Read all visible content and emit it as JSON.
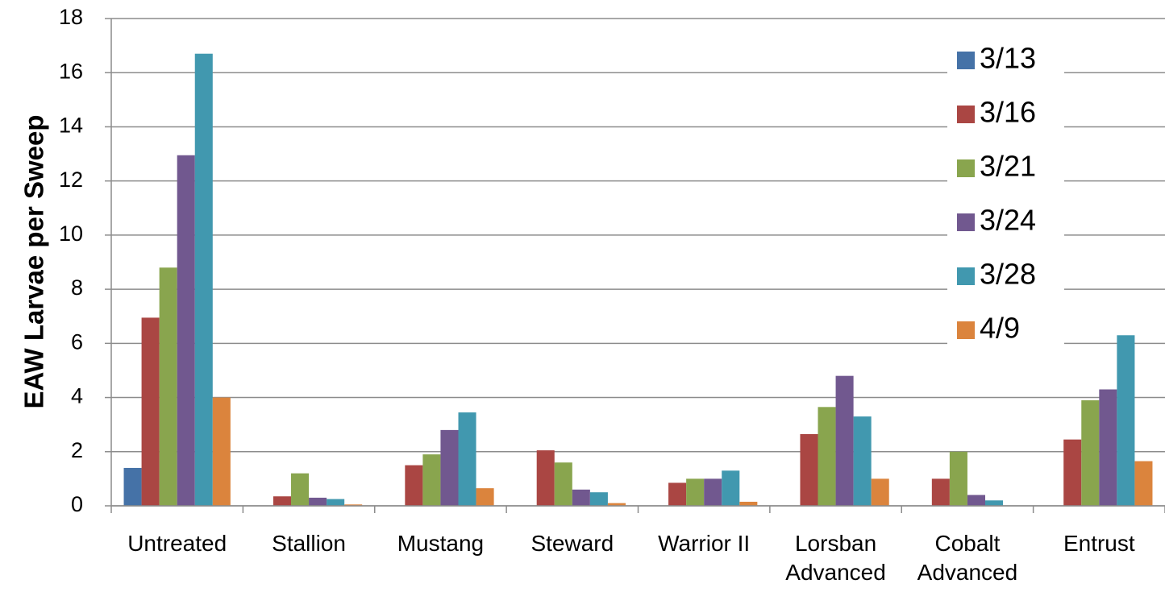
{
  "chart_data": {
    "type": "bar",
    "y_label": "EAW Larvae per Sweep",
    "categories": [
      "Untreated",
      "Stallion",
      "Mustang",
      "Steward",
      "Warrior II",
      "Lorsban Advanced",
      "Cobalt Advanced",
      "Entrust"
    ],
    "series": [
      {
        "name": "3/13",
        "color": "#4572a7",
        "values": [
          1.4,
          0,
          0,
          0,
          0,
          0,
          0,
          0
        ]
      },
      {
        "name": "3/16",
        "color": "#aa4643",
        "values": [
          6.95,
          0.35,
          1.5,
          2.05,
          0.85,
          2.65,
          1.0,
          2.45
        ]
      },
      {
        "name": "3/21",
        "color": "#89a54e",
        "values": [
          8.8,
          1.2,
          1.9,
          1.6,
          1.0,
          3.65,
          2.0,
          3.9
        ]
      },
      {
        "name": "3/24",
        "color": "#71588f",
        "values": [
          12.95,
          0.3,
          2.8,
          0.6,
          1.0,
          4.8,
          0.4,
          4.3
        ]
      },
      {
        "name": "3/28",
        "color": "#4198af",
        "values": [
          16.7,
          0.25,
          3.45,
          0.5,
          1.3,
          3.3,
          0.2,
          6.3
        ]
      },
      {
        "name": "4/9",
        "color": "#db843d",
        "values": [
          4.0,
          0.05,
          0.65,
          0.1,
          0.15,
          1.0,
          0,
          1.65
        ]
      }
    ],
    "ylim": [
      0,
      18
    ],
    "yticks": [
      0,
      2,
      4,
      6,
      8,
      10,
      12,
      14,
      16,
      18
    ],
    "grid": true,
    "legend": "right"
  }
}
